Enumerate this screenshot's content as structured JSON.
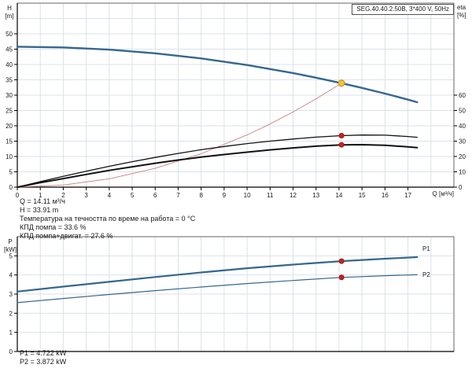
{
  "title_box": {
    "label": "SEG.40.40.2.50B, 3*400 V, 50Hz"
  },
  "top_chart_titles": {
    "left_1": "H",
    "left_2": "[m]",
    "right_1": "eta",
    "right_2": "[%]",
    "x": "Q [м³/ч]"
  },
  "bottom_chart_titles": {
    "left_1": "P",
    "left_2": "[kW]"
  },
  "series_labels": {
    "p1": "P1",
    "p2": "P2"
  },
  "info": {
    "line1": "Q = 14.11 м³/ч",
    "line2": "H = 33.91 m",
    "line3": "Температура на течността по време на работа = 0 °C",
    "line4": "КПД помпа = 33.6 %",
    "line5": "КПД помпа+двигат. = 27.6 %"
  },
  "power_info": {
    "line1": "P1 = 4.722 kW",
    "line2": "P2 = 3.872 kW"
  },
  "colors": {
    "curve_blue": "#35678e",
    "curve_black": "#111111",
    "system_red": "#c98383",
    "marker_red": "#cc2222",
    "marker_red_edge": "#991515",
    "marker_yellow": "#f2c437",
    "marker_yellow_edge": "#c08a1a",
    "grid": "#dbe2e9",
    "border": "#666666",
    "axis": "#000000"
  },
  "chart_data": [
    {
      "type": "line",
      "title": "SEG.40.40.2.50B, 3*400 V, 50Hz",
      "xlabel": "Q [м³/ч]",
      "ylabel_left": "H [m]",
      "ylabel_right": "eta [%]",
      "x_range": [
        0,
        19
      ],
      "x_grid_step": 1,
      "x_ticks": [
        0,
        1,
        2,
        3,
        4,
        5,
        6,
        7,
        8,
        9,
        10,
        11,
        12,
        13,
        14,
        15,
        16,
        17
      ],
      "y_left_range": [
        0,
        60
      ],
      "y_left_grid_step": 5,
      "y_left_ticks": [
        0,
        5,
        10,
        15,
        20,
        25,
        30,
        35,
        40,
        45,
        50
      ],
      "y_right_range": [
        0,
        120
      ],
      "y_right_ticks": [
        0,
        10,
        20,
        30,
        40,
        50,
        60
      ],
      "series": [
        {
          "name": "pump-curve-H",
          "axis": "left",
          "color_key": "curve_blue",
          "width": 2.4,
          "points": [
            [
              0,
              45.8
            ],
            [
              2,
              45.56
            ],
            [
              4,
              44.84
            ],
            [
              6,
              43.65
            ],
            [
              8,
              41.98
            ],
            [
              10,
              39.83
            ],
            [
              12,
              37.2
            ],
            [
              13,
              35.7
            ],
            [
              14.11,
              33.91
            ],
            [
              15,
              32.37
            ],
            [
              16,
              30.52
            ],
            [
              17,
              28.55
            ],
            [
              17.4,
              27.7
            ]
          ]
        },
        {
          "name": "system-curve",
          "axis": "left",
          "color_key": "system_red",
          "width": 0.9,
          "points": [
            [
              0,
              0
            ],
            [
              2,
              0.68
            ],
            [
              4,
              2.72
            ],
            [
              6,
              6.13
            ],
            [
              8,
              10.9
            ],
            [
              10,
              17.03
            ],
            [
              11,
              20.6
            ],
            [
              12,
              24.5
            ],
            [
              13,
              28.8
            ],
            [
              14.11,
              33.91
            ]
          ]
        },
        {
          "name": "eta-pump-curve",
          "axis": "right",
          "color_key": "curve_black",
          "width": 1.3,
          "points": [
            [
              0,
              0
            ],
            [
              1,
              3.6
            ],
            [
              2,
              7.0
            ],
            [
              3,
              10.4
            ],
            [
              4,
              13.6
            ],
            [
              5,
              16.6
            ],
            [
              6,
              19.4
            ],
            [
              7,
              22.0
            ],
            [
              8,
              24.4
            ],
            [
              9,
              26.5
            ],
            [
              10,
              28.4
            ],
            [
              11,
              30.0
            ],
            [
              12,
              31.4
            ],
            [
              13,
              32.6
            ],
            [
              14.11,
              33.6
            ],
            [
              15,
              34.0
            ],
            [
              16,
              33.9
            ],
            [
              17,
              33.0
            ],
            [
              17.4,
              32.5
            ]
          ]
        },
        {
          "name": "eta-pump-motor-curve",
          "axis": "right",
          "color_key": "curve_black",
          "width": 2.0,
          "points": [
            [
              0,
              0
            ],
            [
              1,
              2.9
            ],
            [
              2,
              5.6
            ],
            [
              3,
              8.3
            ],
            [
              4,
              10.9
            ],
            [
              5,
              13.3
            ],
            [
              6,
              15.6
            ],
            [
              7,
              17.7
            ],
            [
              8,
              19.6
            ],
            [
              9,
              21.3
            ],
            [
              10,
              22.8
            ],
            [
              11,
              24.3
            ],
            [
              12,
              25.6
            ],
            [
              13,
              26.7
            ],
            [
              14.11,
              27.6
            ],
            [
              15,
              27.7
            ],
            [
              16,
              27.3
            ],
            [
              17,
              26.3
            ],
            [
              17.4,
              25.8
            ]
          ]
        }
      ],
      "markers": [
        {
          "name": "duty-point-marker",
          "x": 14.11,
          "y": 33.91,
          "axis": "left",
          "r": 4,
          "fill_key": "marker_yellow",
          "stroke_key": "marker_yellow_edge"
        },
        {
          "name": "eta-pump-marker",
          "x": 14.11,
          "y": 33.6,
          "axis": "right",
          "r": 3,
          "fill_key": "marker_red",
          "stroke_key": "marker_red_edge"
        },
        {
          "name": "eta-total-marker",
          "x": 14.11,
          "y": 27.6,
          "axis": "right",
          "r": 3,
          "fill_key": "marker_red",
          "stroke_key": "marker_red_edge"
        }
      ],
      "annotations": {
        "duty_Q": 14.11,
        "duty_H": 33.91,
        "eta_pump_pct": 33.6,
        "eta_total_pct": 27.6
      }
    },
    {
      "type": "line",
      "title": "Power curves",
      "xlabel": "",
      "ylabel_left": "P [kW]",
      "x_range": [
        0,
        19
      ],
      "x_grid_step": 1,
      "x_ticks": [],
      "y_left_range": [
        0,
        6
      ],
      "y_left_grid_step": 1,
      "y_left_ticks": [
        0,
        1,
        2,
        3,
        4,
        5
      ],
      "series": [
        {
          "name": "P1-curve",
          "axis": "left",
          "color_key": "curve_blue",
          "width": 2.2,
          "points": [
            [
              0,
              3.13
            ],
            [
              2,
              3.39
            ],
            [
              4,
              3.64
            ],
            [
              6,
              3.89
            ],
            [
              8,
              4.13
            ],
            [
              10,
              4.35
            ],
            [
              12,
              4.54
            ],
            [
              14.11,
              4.722
            ],
            [
              16,
              4.85
            ],
            [
              17.4,
              4.93
            ]
          ]
        },
        {
          "name": "P2-curve",
          "axis": "left",
          "color_key": "curve_blue",
          "width": 1.2,
          "points": [
            [
              0,
              2.55
            ],
            [
              2,
              2.77
            ],
            [
              4,
              2.98
            ],
            [
              6,
              3.18
            ],
            [
              8,
              3.37
            ],
            [
              10,
              3.55
            ],
            [
              12,
              3.71
            ],
            [
              14.11,
              3.872
            ],
            [
              16,
              3.96
            ],
            [
              17.4,
              4.01
            ]
          ]
        }
      ],
      "markers": [
        {
          "name": "p1-duty-marker",
          "x": 14.11,
          "y": 4.722,
          "axis": "left",
          "r": 3,
          "fill_key": "marker_red",
          "stroke_key": "marker_red_edge"
        },
        {
          "name": "p2-duty-marker",
          "x": 14.11,
          "y": 3.872,
          "axis": "left",
          "r": 3,
          "fill_key": "marker_red",
          "stroke_key": "marker_red_edge"
        }
      ],
      "annotations": {
        "P1_kW": 4.722,
        "P2_kW": 3.872
      }
    }
  ]
}
